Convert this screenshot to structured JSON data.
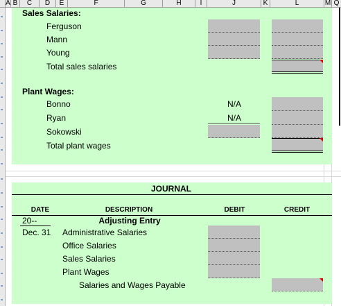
{
  "column_headers": [
    "A",
    "B",
    "C",
    "D",
    "E",
    "F",
    "G",
    "H",
    "I",
    "J",
    "K",
    "L",
    "M",
    "Q"
  ],
  "sales": {
    "heading": "Sales Salaries:",
    "employees": [
      "Ferguson",
      "Mann",
      "Young"
    ],
    "total_label": "Total sales salaries"
  },
  "plant": {
    "heading": "Plant Wages:",
    "employees": [
      "Bonno",
      "Ryan",
      "Sokowski"
    ],
    "na_values": [
      "N/A",
      "N/A"
    ],
    "total_label": "Total plant wages"
  },
  "journal": {
    "title": "JOURNAL",
    "headers": {
      "date": "DATE",
      "description": "DESCRIPTION",
      "debit": "DEBIT",
      "credit": "CREDIT"
    },
    "year": "20--",
    "adjusting_entry": "Adjusting Entry",
    "date": "Dec. 31",
    "accounts": [
      "Administrative Salaries",
      "Office Salaries",
      "Sales Salaries",
      "Plant Wages"
    ],
    "credit_account": "Salaries and Wages Payable"
  },
  "colors": {
    "panel": "#ccffcc",
    "input": "#c0c0c0",
    "error_marker": "#e00000"
  }
}
